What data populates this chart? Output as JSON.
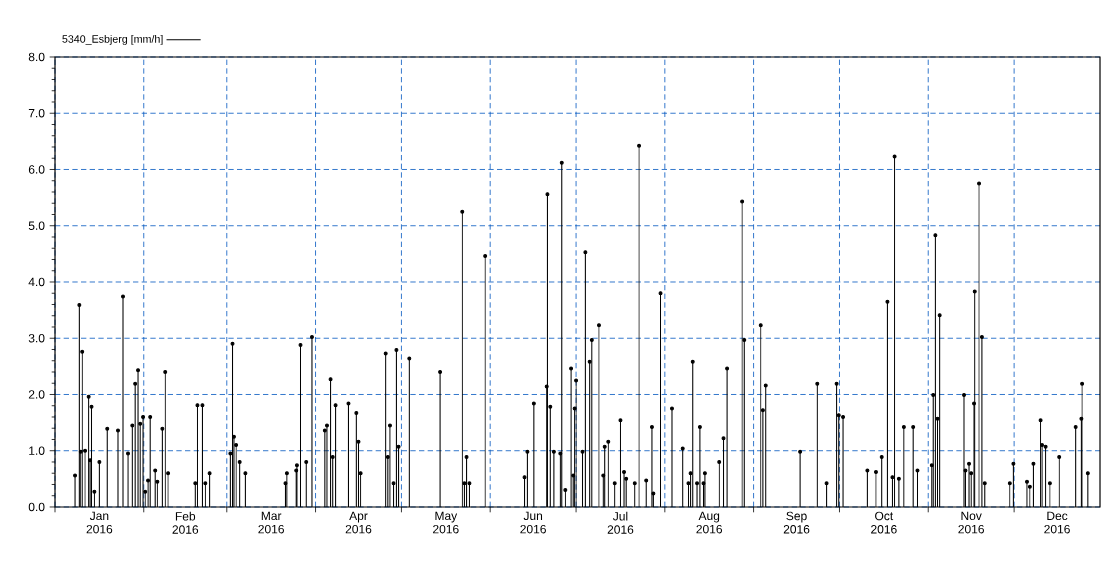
{
  "chart_data": {
    "type": "lollipop",
    "marker": "circle",
    "x": [
      "2016-01-08T00:00",
      "2016-01-09T12:00",
      "2016-01-10T00:00",
      "2016-01-10T12:00",
      "2016-01-11T12:00",
      "2016-01-12T18:00",
      "2016-01-13T06:00",
      "2016-01-13T18:00",
      "2016-01-14T18:00",
      "2016-01-16T12:00",
      "2016-01-19T06:00",
      "2016-01-23T00:00",
      "2016-01-24T18:00",
      "2016-01-26T12:00",
      "2016-01-28T00:00",
      "2016-01-29T00:00",
      "2016-01-30T00:00",
      "2016-01-30T18:00",
      "2016-01-31T18:00",
      "2016-02-01T12:00",
      "2016-02-02T12:00",
      "2016-02-03T06:00",
      "2016-02-05T00:00",
      "2016-02-05T18:00",
      "2016-02-07T12:00",
      "2016-02-08T12:00",
      "2016-02-09T12:00",
      "2016-02-19T00:00",
      "2016-02-19T18:00",
      "2016-02-21T12:00",
      "2016-02-22T12:00",
      "2016-02-24T00:00",
      "2016-03-02T06:00",
      "2016-03-03T00:00",
      "2016-03-03T12:00",
      "2016-03-04T06:00",
      "2016-03-05T12:00",
      "2016-03-07T12:00",
      "2016-03-21T12:00",
      "2016-03-22T00:00",
      "2016-03-25T06:00",
      "2016-03-25T12:00",
      "2016-03-26T18:00",
      "2016-03-28T18:00",
      "2016-03-30T18:00",
      "2016-04-04T06:00",
      "2016-04-05T00:00",
      "2016-04-06T06:00",
      "2016-04-07T00:00",
      "2016-04-08T00:00",
      "2016-04-12T12:00",
      "2016-04-15T06:00",
      "2016-04-16T00:00",
      "2016-04-16T18:00",
      "2016-04-25T12:00",
      "2016-04-26T06:00",
      "2016-04-27T00:00",
      "2016-04-28T06:00",
      "2016-04-29T06:00",
      "2016-04-30T00:00",
      "2016-05-03T18:00",
      "2016-05-14T12:00",
      "2016-05-22T06:00",
      "2016-05-23T00:00",
      "2016-05-23T18:00",
      "2016-05-24T18:00",
      "2016-05-30T06:00",
      "2016-06-13T00:00",
      "2016-06-14T00:00",
      "2016-06-16T06:00",
      "2016-06-20T18:00",
      "2016-06-21T00:00",
      "2016-06-22T00:00",
      "2016-06-23T06:00",
      "2016-06-25T12:00",
      "2016-06-26T00:00",
      "2016-06-27T06:00",
      "2016-06-29T06:00",
      "2016-06-30T00:00",
      "2016-06-30T12:00",
      "2016-07-01T00:00",
      "2016-07-03T06:00",
      "2016-07-04T06:00",
      "2016-07-05T18:00",
      "2016-07-06T12:00",
      "2016-07-09T00:00",
      "2016-07-10T12:00",
      "2016-07-11T00:00",
      "2016-07-12T06:00",
      "2016-07-14T12:00",
      "2016-07-16T12:00",
      "2016-07-17T18:00",
      "2016-07-18T12:00",
      "2016-07-21T12:00",
      "2016-07-23T00:00",
      "2016-07-25T12:00",
      "2016-07-27T12:00",
      "2016-07-28T00:00",
      "2016-07-30T12:00",
      "2016-08-03T12:00",
      "2016-08-07T06:00",
      "2016-08-09T06:00",
      "2016-08-10T00:00",
      "2016-08-10T18:00",
      "2016-08-12T06:00",
      "2016-08-13T06:00",
      "2016-08-14T12:00",
      "2016-08-15T00:00",
      "2016-08-20T00:00",
      "2016-08-21T12:00",
      "2016-08-22T18:00",
      "2016-08-28T00:00",
      "2016-08-28T18:00",
      "2016-09-03T12:00",
      "2016-09-04T06:00",
      "2016-09-05T06:00",
      "2016-09-17T06:00",
      "2016-09-23T06:00",
      "2016-09-26T12:00",
      "2016-09-30T00:00",
      "2016-09-30T18:00",
      "2016-10-02T06:00",
      "2016-10-10T18:00",
      "2016-10-13T18:00",
      "2016-10-15T18:00",
      "2016-10-17T18:00",
      "2016-10-19T12:00",
      "2016-10-20T06:00",
      "2016-10-21T18:00",
      "2016-10-23T12:00",
      "2016-10-26T18:00",
      "2016-10-28T06:00",
      "2016-11-02T06:00",
      "2016-11-02T18:00",
      "2016-11-03T12:00",
      "2016-11-04T06:00",
      "2016-11-05T00:00",
      "2016-11-13T12:00",
      "2016-11-14T00:00",
      "2016-11-15T06:00",
      "2016-11-16T00:00",
      "2016-11-17T00:00",
      "2016-11-17T06:00",
      "2016-11-18T18:00",
      "2016-11-19T18:00",
      "2016-11-20T18:00",
      "2016-11-29T12:00",
      "2016-11-30T18:00",
      "2016-12-05T12:00",
      "2016-12-06T12:00",
      "2016-12-07T18:00",
      "2016-12-10T06:00",
      "2016-12-10T18:00",
      "2016-12-12T00:00",
      "2016-12-13T12:00",
      "2016-12-16T18:00",
      "2016-12-22T12:00",
      "2016-12-24T12:00",
      "2016-12-24T18:00",
      "2016-12-26T18:00"
    ],
    "series": [
      {
        "name": "5340_Esbjerg [mm/h]",
        "color": "#000000",
        "values": [
          0.56,
          3.59,
          0.98,
          2.76,
          1.0,
          1.96,
          0.83,
          1.78,
          0.27,
          0.8,
          1.39,
          1.36,
          3.74,
          0.95,
          1.45,
          2.19,
          2.43,
          1.48,
          1.6,
          0.27,
          0.47,
          1.6,
          0.65,
          0.45,
          1.39,
          2.4,
          0.6,
          0.42,
          1.81,
          1.81,
          0.42,
          0.6,
          0.95,
          2.9,
          1.25,
          1.1,
          0.8,
          0.6,
          0.42,
          0.6,
          0.65,
          0.74,
          2.88,
          0.8,
          3.02,
          1.36,
          1.45,
          2.27,
          0.89,
          1.81,
          1.84,
          1.67,
          1.16,
          0.6,
          2.73,
          0.89,
          1.45,
          0.42,
          2.79,
          1.07,
          2.64,
          2.4,
          5.25,
          0.42,
          0.89,
          0.42,
          4.46,
          0.53,
          0.98,
          1.84,
          2.14,
          5.56,
          1.78,
          0.98,
          0.95,
          6.12,
          0.3,
          2.46,
          0.56,
          1.75,
          2.25,
          0.98,
          4.53,
          2.58,
          2.97,
          3.23,
          0.56,
          1.07,
          1.16,
          0.42,
          1.54,
          0.62,
          0.5,
          0.42,
          6.42,
          0.47,
          1.42,
          0.24,
          3.8,
          1.75,
          1.04,
          0.42,
          0.6,
          2.58,
          0.42,
          1.42,
          0.42,
          0.6,
          0.8,
          1.22,
          2.46,
          5.43,
          2.97,
          3.23,
          1.72,
          2.16,
          0.98,
          2.19,
          0.42,
          2.19,
          1.63,
          1.6,
          0.65,
          0.62,
          0.89,
          3.65,
          0.53,
          6.23,
          0.5,
          1.42,
          1.42,
          0.65,
          0.74,
          1.99,
          4.83,
          1.57,
          3.41,
          1.99,
          0.65,
          0.77,
          0.6,
          1.84,
          3.83,
          5.75,
          3.02,
          0.42,
          0.42,
          0.77,
          0.45,
          0.36,
          0.77,
          1.54,
          1.1,
          1.07,
          0.42,
          0.89,
          1.42,
          1.57,
          2.19,
          0.6
        ]
      }
    ],
    "xlim": [
      "2016-01-01",
      "2016-12-31"
    ],
    "xticks": [
      {
        "value": "2016-01-01",
        "label": null
      },
      {
        "value": "2016-01-16T12:00",
        "label": "Jan 2016"
      },
      {
        "value": "2016-02-01",
        "label": null
      },
      {
        "value": "2016-02-15T12:00",
        "label": "Feb 2016"
      },
      {
        "value": "2016-03-01",
        "label": null
      },
      {
        "value": "2016-03-16T12:00",
        "label": "Mar 2016"
      },
      {
        "value": "2016-04-01",
        "label": null
      },
      {
        "value": "2016-04-16",
        "label": "Apr 2016"
      },
      {
        "value": "2016-05-01",
        "label": null
      },
      {
        "value": "2016-05-16T12:00",
        "label": "May 2016"
      },
      {
        "value": "2016-06-01",
        "label": null
      },
      {
        "value": "2016-06-16",
        "label": "Jun 2016"
      },
      {
        "value": "2016-07-01",
        "label": null
      },
      {
        "value": "2016-07-16T12:00",
        "label": "Jul 2016"
      },
      {
        "value": "2016-08-01",
        "label": null
      },
      {
        "value": "2016-08-16T12:00",
        "label": "Aug 2016"
      },
      {
        "value": "2016-09-01",
        "label": null
      },
      {
        "value": "2016-09-16",
        "label": "Sep 2016"
      },
      {
        "value": "2016-10-01",
        "label": null
      },
      {
        "value": "2016-10-16T12:00",
        "label": "Oct 2016"
      },
      {
        "value": "2016-11-01",
        "label": null
      },
      {
        "value": "2016-11-16",
        "label": "Nov 2016"
      },
      {
        "value": "2016-12-01",
        "label": null
      },
      {
        "value": "2016-12-16",
        "label": "Dec 2016"
      }
    ],
    "ylim": [
      0,
      8
    ],
    "yticks": [
      {
        "value": 0,
        "label": "0.0"
      },
      {
        "value": 1,
        "label": "1.0"
      },
      {
        "value": 2,
        "label": "2.0"
      },
      {
        "value": 3,
        "label": "3.0"
      },
      {
        "value": 4,
        "label": "4.0"
      },
      {
        "value": 5,
        "label": "5.0"
      },
      {
        "value": 6,
        "label": "6.0"
      },
      {
        "value": 7,
        "label": "7.0"
      },
      {
        "value": 8,
        "label": "8.0"
      }
    ],
    "grid": true,
    "legend": "top left"
  }
}
